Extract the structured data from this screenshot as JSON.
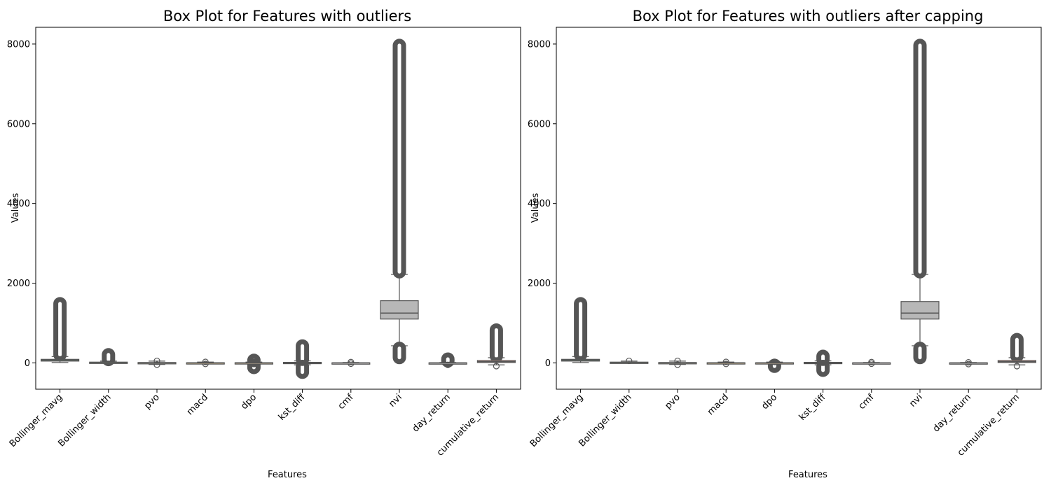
{
  "chart_data": [
    {
      "type": "box",
      "title": "Box Plot for Features with outliers",
      "xlabel": "Features",
      "ylabel": "Values",
      "ylim": [
        -660,
        8420
      ],
      "yticks": [
        0,
        2000,
        4000,
        6000,
        8000
      ],
      "categories": [
        "Bollinger_mavg",
        "Bollinger_width",
        "pvo",
        "macd",
        "dpo",
        "kst_diff",
        "cmf",
        "nvi",
        "day_return",
        "cumulative_return"
      ],
      "colors": [
        "#7aa08f",
        "#a9c2a0",
        "#d5d3ba",
        "#dfc99e",
        "#d9c4a6",
        "#cfb7b0",
        "#d6d3d0",
        "#b7b7b7",
        "#c4c4c4",
        "#d89a8c"
      ],
      "boxes": [
        {
          "min": 10,
          "q1": 45,
          "median": 70,
          "q3": 90,
          "max": 160,
          "outliers_low": [],
          "outliers_high": [
            170,
            1520
          ]
        },
        {
          "min": 0,
          "q1": 5,
          "median": 10,
          "q3": 20,
          "max": 45,
          "outliers_low": [],
          "outliers_high": [
            50,
            240
          ]
        },
        {
          "min": -40,
          "q1": -15,
          "median": 0,
          "q3": 10,
          "max": 45,
          "outliers_low": [
            -45,
            -90
          ],
          "outliers_high": [
            50,
            100
          ]
        },
        {
          "min": -20,
          "q1": -5,
          "median": 0,
          "q3": 5,
          "max": 20,
          "outliers_low": [
            -25,
            -70
          ],
          "outliers_high": [
            25,
            80
          ]
        },
        {
          "min": -20,
          "q1": -5,
          "median": 0,
          "q3": 5,
          "max": 20,
          "outliers_low": [
            -25,
            -150
          ],
          "outliers_high": [
            25,
            100
          ]
        },
        {
          "min": -50,
          "q1": -15,
          "median": 0,
          "q3": 15,
          "max": 50,
          "outliers_low": [
            -55,
            -270
          ],
          "outliers_high": [
            55,
            460
          ]
        },
        {
          "min": -10,
          "q1": -3,
          "median": 0,
          "q3": 3,
          "max": 10,
          "outliers_low": [
            -20
          ],
          "outliers_high": [
            20
          ]
        },
        {
          "min": 430,
          "q1": 1100,
          "median": 1250,
          "q3": 1560,
          "max": 2220,
          "outliers_low": [
            100,
            400
          ],
          "outliers_high": [
            2250,
            8000
          ]
        },
        {
          "min": -10,
          "q1": -3,
          "median": 0,
          "q3": 3,
          "max": 10,
          "outliers_low": [
            -50
          ],
          "outliers_high": [
            15,
            130
          ]
        },
        {
          "min": -50,
          "q1": 10,
          "median": 30,
          "q3": 60,
          "max": 130,
          "outliers_low": [
            -80
          ],
          "outliers_high": [
            140,
            860
          ]
        }
      ]
    },
    {
      "type": "box",
      "title": "Box Plot for Features with outliers after capping",
      "xlabel": "Features",
      "ylabel": "Values",
      "ylim": [
        -660,
        8420
      ],
      "yticks": [
        0,
        2000,
        4000,
        6000,
        8000
      ],
      "categories": [
        "Bollinger_mavg",
        "Bollinger_width",
        "pvo",
        "macd",
        "dpo",
        "kst_diff",
        "cmf",
        "nvi",
        "day_return",
        "cumulative_return"
      ],
      "colors": [
        "#7aa08f",
        "#a9c2a0",
        "#d5d3ba",
        "#dfc99e",
        "#d9c4a6",
        "#cfb7b0",
        "#d6d3d0",
        "#b7b7b7",
        "#c4c4c4",
        "#d89a8c"
      ],
      "boxes": [
        {
          "min": 10,
          "q1": 45,
          "median": 70,
          "q3": 90,
          "max": 160,
          "outliers_low": [],
          "outliers_high": [
            170,
            1520
          ]
        },
        {
          "min": 0,
          "q1": 5,
          "median": 10,
          "q3": 20,
          "max": 45,
          "outliers_low": [],
          "outliers_high": [
            50,
            110
          ]
        },
        {
          "min": -40,
          "q1": -15,
          "median": 0,
          "q3": 10,
          "max": 45,
          "outliers_low": [
            -45,
            -90
          ],
          "outliers_high": [
            50,
            90
          ]
        },
        {
          "min": -20,
          "q1": -5,
          "median": 0,
          "q3": 5,
          "max": 20,
          "outliers_low": [
            -25,
            -60
          ],
          "outliers_high": [
            25,
            70
          ]
        },
        {
          "min": -20,
          "q1": -5,
          "median": 0,
          "q3": 5,
          "max": 20,
          "outliers_low": [
            -25,
            -120
          ],
          "outliers_high": [
            25,
            90
          ]
        },
        {
          "min": -50,
          "q1": -15,
          "median": 0,
          "q3": 15,
          "max": 50,
          "outliers_low": [
            -55,
            -220
          ],
          "outliers_high": [
            55,
            200
          ]
        },
        {
          "min": -10,
          "q1": -3,
          "median": 0,
          "q3": 3,
          "max": 10,
          "outliers_low": [
            -20
          ],
          "outliers_high": [
            20
          ]
        },
        {
          "min": 430,
          "q1": 1100,
          "median": 1250,
          "q3": 1540,
          "max": 2220,
          "outliers_low": [
            100,
            400
          ],
          "outliers_high": [
            2250,
            8000
          ]
        },
        {
          "min": -10,
          "q1": -3,
          "median": 0,
          "q3": 3,
          "max": 10,
          "outliers_low": [
            -30
          ],
          "outliers_high": [
            15,
            40
          ]
        },
        {
          "min": -50,
          "q1": 10,
          "median": 30,
          "q3": 60,
          "max": 130,
          "outliers_low": [
            -80
          ],
          "outliers_high": [
            140,
            620
          ]
        }
      ]
    }
  ]
}
